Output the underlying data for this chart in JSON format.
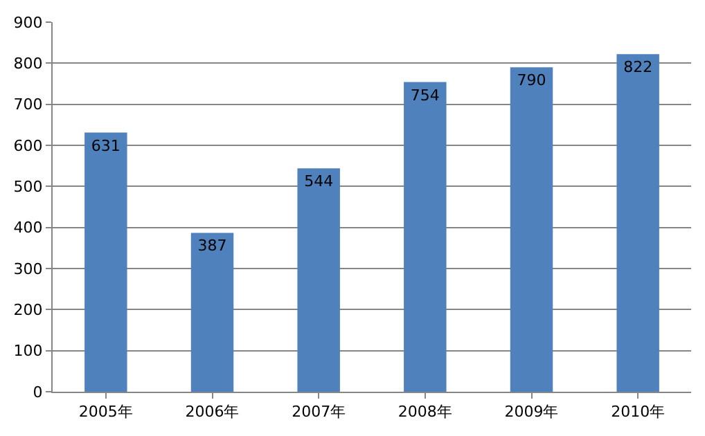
{
  "chart_data": {
    "type": "bar",
    "categories": [
      "2005年",
      "2006年",
      "2007年",
      "2008年",
      "2009年",
      "2010年"
    ],
    "values": [
      631,
      387,
      544,
      754,
      790,
      822
    ],
    "color": "#4f81bd",
    "ylim": [
      0,
      900
    ],
    "yticks": [
      0,
      100,
      200,
      300,
      400,
      500,
      600,
      700,
      800,
      900
    ],
    "grid": "y",
    "data_labels": true,
    "legend": false
  }
}
